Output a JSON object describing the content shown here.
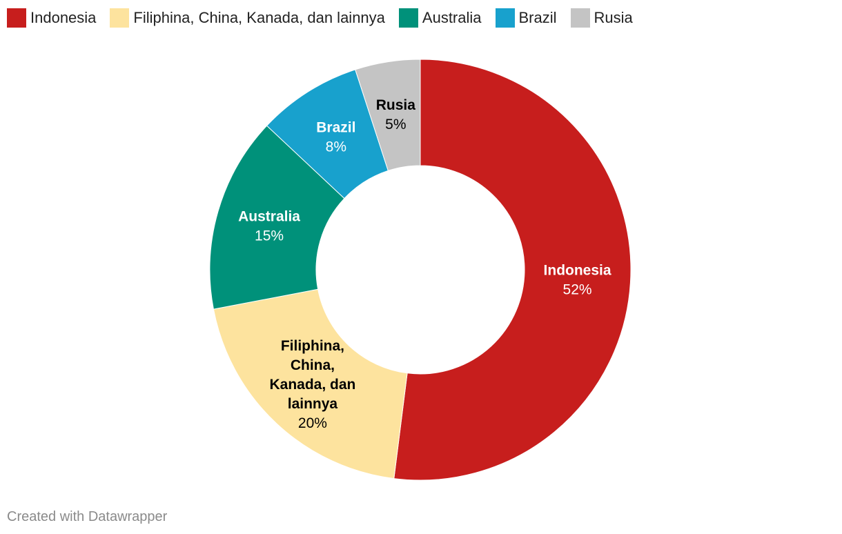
{
  "chart_data": {
    "type": "pie",
    "donut": true,
    "legend_position": "top-left",
    "slices": [
      {
        "label": "Indonesia",
        "value": 52,
        "value_label": "52%",
        "color": "#c71e1d",
        "label_color": "#ffffff",
        "label_lines": [
          "Indonesia"
        ]
      },
      {
        "label": "Filiphina, China, Kanada, dan lainnya",
        "value": 20,
        "value_label": "20%",
        "color": "#fde39e",
        "label_color": "#000000",
        "label_lines": [
          "Filiphina,",
          "China,",
          "Kanada, dan",
          "lainnya"
        ]
      },
      {
        "label": "Australia",
        "value": 15,
        "value_label": "15%",
        "color": "#00917a",
        "label_color": "#ffffff",
        "label_lines": [
          "Australia"
        ]
      },
      {
        "label": "Brazil",
        "value": 8,
        "value_label": "8%",
        "color": "#18a1cd",
        "label_color": "#ffffff",
        "label_lines": [
          "Brazil"
        ]
      },
      {
        "label": "Rusia",
        "value": 5,
        "value_label": "5%",
        "color": "#c4c4c4",
        "label_color": "#000000",
        "label_lines": [
          "Rusia"
        ]
      }
    ]
  },
  "footer": {
    "credit": "Created with Datawrapper"
  }
}
